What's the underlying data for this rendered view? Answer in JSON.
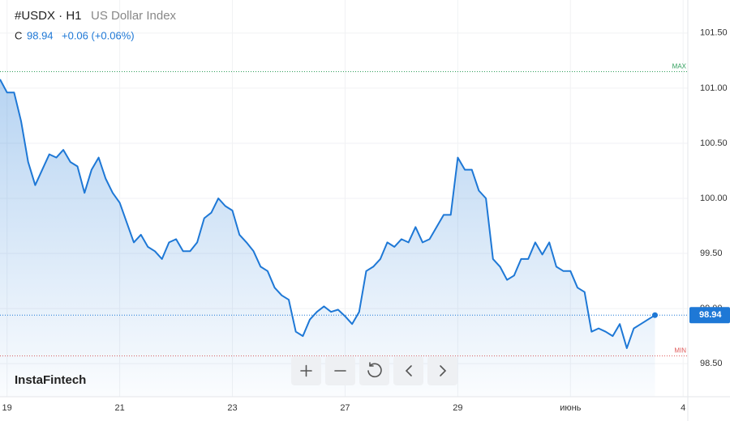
{
  "chart_data": {
    "type": "line",
    "symbol": "#USDX · H1",
    "instrument": "US Dollar Index",
    "close_label": "C",
    "close": "98.94",
    "change": "+0.06 (+0.06%)",
    "brand": "InstaFintech",
    "max": {
      "label": "MAX",
      "value": 101.15
    },
    "min": {
      "label": "MIN",
      "value": 98.57
    },
    "x": [
      -3,
      0,
      3,
      6,
      9,
      12,
      15,
      18,
      21,
      24,
      27,
      30,
      33,
      36,
      39,
      42,
      45,
      48,
      51,
      54,
      57,
      60,
      63,
      66,
      69,
      72,
      75,
      78,
      81,
      84,
      87,
      90,
      93,
      96,
      99,
      102,
      105,
      108,
      111,
      114,
      117,
      120,
      123,
      126,
      129,
      132,
      135,
      138,
      141,
      144,
      147,
      150,
      153,
      156,
      159,
      162,
      165,
      168,
      171,
      174,
      177,
      180,
      183,
      186,
      189,
      192,
      195,
      198,
      201,
      204,
      207,
      210,
      213,
      216,
      219,
      222,
      225,
      228,
      231,
      234,
      237,
      240,
      243,
      246,
      249,
      252,
      255,
      258,
      261,
      264,
      267,
      270,
      273,
      276
    ],
    "series": [
      {
        "name": "USDX",
        "color": "#1e78d6",
        "values": [
          101.08,
          100.96,
          100.96,
          100.7,
          100.33,
          100.12,
          100.26,
          100.4,
          100.37,
          100.44,
          100.33,
          100.29,
          100.05,
          100.26,
          100.37,
          100.18,
          100.05,
          99.96,
          99.78,
          99.6,
          99.67,
          99.56,
          99.52,
          99.45,
          99.6,
          99.63,
          99.52,
          99.52,
          99.6,
          99.82,
          99.87,
          100.0,
          99.93,
          99.89,
          99.67,
          99.6,
          99.52,
          99.38,
          99.34,
          99.19,
          99.12,
          99.08,
          98.79,
          98.75,
          98.9,
          98.97,
          99.02,
          98.97,
          98.99,
          98.93,
          98.86,
          98.97,
          99.34,
          99.38,
          99.45,
          99.6,
          99.56,
          99.63,
          99.6,
          99.74,
          99.6,
          99.63,
          99.74,
          99.85,
          99.85,
          100.37,
          100.26,
          100.26,
          100.07,
          100.0,
          99.45,
          99.38,
          99.26,
          99.3,
          99.45,
          99.45,
          99.6,
          99.49,
          99.6,
          99.38,
          99.34,
          99.34,
          99.19,
          99.15,
          98.79,
          98.82,
          98.79,
          98.75,
          98.86,
          98.64,
          98.82,
          98.86,
          98.9,
          98.94
        ]
      }
    ],
    "xlim": [
      -3,
      290
    ],
    "xticks": [
      {
        "value": 0,
        "label": "19"
      },
      {
        "value": 48,
        "label": "21"
      },
      {
        "value": 96,
        "label": "23"
      },
      {
        "value": 144,
        "label": "27"
      },
      {
        "value": 192,
        "label": "29"
      },
      {
        "value": 240,
        "label": "июнь"
      },
      {
        "value": 288,
        "label": "4"
      }
    ],
    "ylim": [
      98.2,
      101.8
    ],
    "yticks": [
      {
        "value": 98.5,
        "label": "98.50"
      },
      {
        "value": 99,
        "label": "99.00"
      },
      {
        "value": 99.5,
        "label": "99.50"
      },
      {
        "value": 100,
        "label": "100.00"
      },
      {
        "value": 100.5,
        "label": "100.50"
      },
      {
        "value": 101,
        "label": "101.00"
      },
      {
        "value": 101.5,
        "label": "101.50"
      }
    ],
    "grid": true
  }
}
